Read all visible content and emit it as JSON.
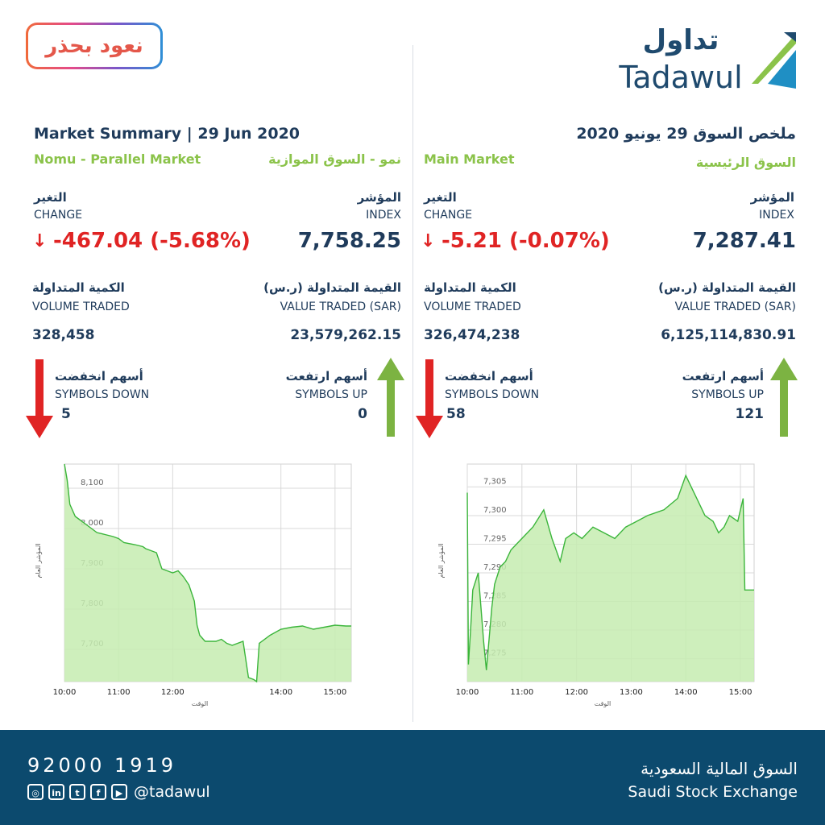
{
  "badge_text": "نعود بحذر",
  "brand": {
    "arabic": "تداول",
    "latin": "Tadawul"
  },
  "left": {
    "title": "Market Summary | 29  Jun 2020",
    "market_en": "Nomu - Parallel Market",
    "market_ar": "نمو - السوق الموازية",
    "change_ar": "التغير",
    "change_en": "CHANGE",
    "change_value": "-467.04 (-5.68%)",
    "index_ar": "المؤشر",
    "index_en": "INDEX",
    "index_value": "7,758.25",
    "volume_ar": "الكمية المتداولة",
    "volume_en": "VOLUME TRADED",
    "volume_value": "328,458",
    "valtraded_ar": "القيمة المتداولة (ر.س)",
    "valtraded_en": "VALUE TRADED (SAR)",
    "valtraded_value": "23,579,262.15",
    "down_ar": "أسهم انخفضت",
    "down_en": "SYMBOLS DOWN",
    "down_value": "5",
    "up_ar": "أسهم ارتفعت",
    "up_en": "SYMBOLS UP",
    "up_value": "0"
  },
  "right": {
    "title": "ملخص السوق 29 يونيو 2020",
    "market_en": "Main Market",
    "market_ar": "السوق الرئيسية",
    "change_ar": "التغير",
    "change_en": "CHANGE",
    "change_value": "-5.21 (-0.07%)",
    "index_ar": "المؤشر",
    "index_en": "INDEX",
    "index_value": "7,287.41",
    "volume_ar": "الكمية المتداولة",
    "volume_en": "VOLUME TRADED",
    "volume_value": "326,474,238",
    "valtraded_ar": "القيمة المتداولة (ر.س)",
    "valtraded_en": "VALUE TRADED (SAR)",
    "valtraded_value": "6,125,114,830.91",
    "down_ar": "أسهم انخفضت",
    "down_en": "SYMBOLS DOWN",
    "down_value": "58",
    "up_ar": "أسهم ارتفعت",
    "up_en": "SYMBOLS UP",
    "up_value": "121"
  },
  "footer": {
    "phone": "92000 1919",
    "handle": "@tadawul",
    "exchange_ar": "السوق المالية السعودية",
    "exchange_en": "Saudi Stock Exchange"
  },
  "colors": {
    "navy": "#1f3b5b",
    "green": "#8bc34a",
    "red": "#e02424",
    "fill": "#c5ecb0",
    "footer": "#0c4a6e"
  },
  "chart_data": [
    {
      "type": "area",
      "ylabel": "المؤشر العام",
      "xlabel": "الوقت",
      "ylim": [
        7620,
        8160
      ],
      "xlim": [
        10.0,
        15.3
      ],
      "yticks": [
        7700,
        7800,
        7900,
        8000,
        8100
      ],
      "ytick_labels": [
        "7,700",
        "7,800",
        "7,900",
        "8,000",
        "8,100"
      ],
      "xticks": [
        10,
        11,
        12,
        14,
        15
      ],
      "xtick_labels": [
        "10:00",
        "11:00",
        "12:00",
        "14:00",
        "15:00"
      ],
      "x": [
        10.0,
        10.05,
        10.1,
        10.2,
        10.3,
        10.4,
        10.5,
        10.6,
        10.75,
        10.9,
        11.0,
        11.1,
        11.3,
        11.45,
        11.5,
        11.7,
        11.8,
        11.9,
        12.0,
        12.1,
        12.2,
        12.3,
        12.4,
        12.45,
        12.5,
        12.6,
        12.8,
        12.9,
        13.0,
        13.1,
        13.3,
        13.4,
        13.5,
        13.55,
        13.6,
        13.8,
        14.0,
        14.2,
        14.4,
        14.6,
        14.8,
        15.0,
        15.2,
        15.3
      ],
      "y": [
        8160,
        8120,
        8060,
        8030,
        8020,
        8010,
        8000,
        7990,
        7985,
        7980,
        7975,
        7965,
        7960,
        7955,
        7950,
        7940,
        7900,
        7895,
        7890,
        7895,
        7880,
        7860,
        7820,
        7760,
        7735,
        7720,
        7720,
        7725,
        7715,
        7710,
        7720,
        7630,
        7625,
        7620,
        7715,
        7735,
        7750,
        7755,
        7758,
        7750,
        7755,
        7760,
        7758,
        7758
      ]
    },
    {
      "type": "area",
      "ylabel": "المؤشر العام",
      "xlabel": "الوقت",
      "ylim": [
        7271,
        7309
      ],
      "xlim": [
        10.0,
        15.25
      ],
      "yticks": [
        7275,
        7280,
        7285,
        7290,
        7295,
        7300,
        7305
      ],
      "ytick_labels": [
        "7,275",
        "7,280",
        "7,285",
        "7,290",
        "7,295",
        "7,300",
        "7,305"
      ],
      "xticks": [
        10,
        11,
        12,
        13,
        14,
        15
      ],
      "xtick_labels": [
        "10:00",
        "11:00",
        "12:00",
        "13:00",
        "14:00",
        "15:00"
      ],
      "x": [
        10.0,
        10.02,
        10.06,
        10.1,
        10.2,
        10.3,
        10.35,
        10.45,
        10.5,
        10.6,
        10.7,
        10.8,
        11.0,
        11.2,
        11.4,
        11.55,
        11.7,
        11.8,
        11.95,
        12.1,
        12.3,
        12.5,
        12.7,
        12.9,
        13.1,
        13.3,
        13.6,
        13.85,
        14.0,
        14.1,
        14.2,
        14.35,
        14.5,
        14.6,
        14.7,
        14.8,
        14.95,
        15.05,
        15.08,
        15.25
      ],
      "y": [
        7304,
        7274,
        7280,
        7287,
        7290,
        7278,
        7273,
        7284,
        7288,
        7291,
        7292,
        7294,
        7296,
        7298,
        7301,
        7296,
        7292,
        7296,
        7297,
        7296,
        7298,
        7297,
        7296,
        7298,
        7299,
        7300,
        7301,
        7303,
        7307,
        7305,
        7303,
        7300,
        7299,
        7297,
        7298,
        7300,
        7299,
        7303,
        7287,
        7287
      ]
    }
  ]
}
